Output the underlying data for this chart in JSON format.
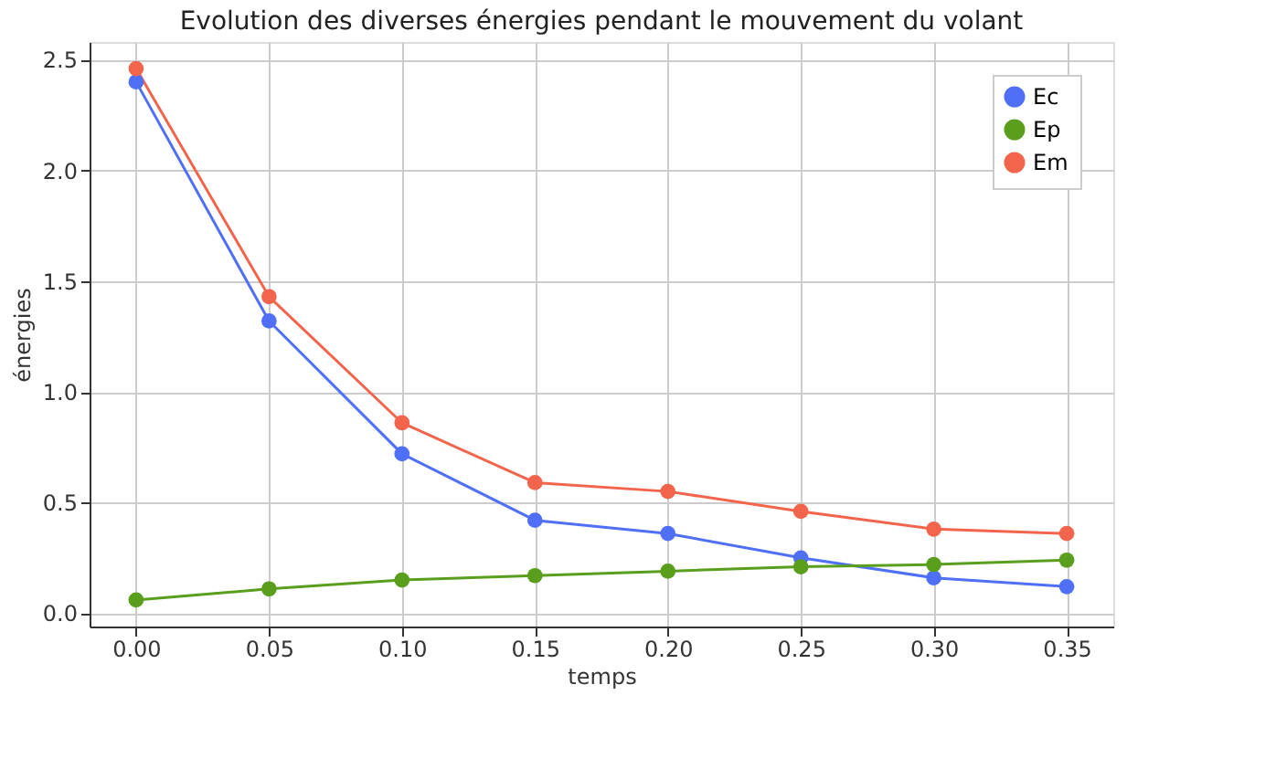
{
  "chart_data": {
    "type": "line",
    "title": "Evolution des diverses énergies pendant le mouvement du volant",
    "xlabel": "temps",
    "ylabel": "énergies",
    "x": [
      0.0,
      0.05,
      0.1,
      0.15,
      0.2,
      0.25,
      0.3,
      0.35
    ],
    "series": [
      {
        "name": "Ec",
        "color": "#4f6ff7",
        "values": [
          2.4,
          1.32,
          0.72,
          0.42,
          0.36,
          0.25,
          0.16,
          0.12
        ]
      },
      {
        "name": "Ep",
        "color": "#5a9e1e",
        "values": [
          0.06,
          0.11,
          0.15,
          0.17,
          0.19,
          0.21,
          0.22,
          0.24
        ]
      },
      {
        "name": "Em",
        "color": "#f2654c",
        "values": [
          2.46,
          1.43,
          0.86,
          0.59,
          0.55,
          0.46,
          0.38,
          0.36
        ]
      }
    ],
    "xlim": [
      -0.0175,
      0.3675
    ],
    "xticks": [
      {
        "value": 0.0,
        "label": "0.00"
      },
      {
        "value": 0.05,
        "label": "0.05"
      },
      {
        "value": 0.1,
        "label": "0.10"
      },
      {
        "value": 0.15,
        "label": "0.15"
      },
      {
        "value": 0.2,
        "label": "0.20"
      },
      {
        "value": 0.25,
        "label": "0.25"
      },
      {
        "value": 0.3,
        "label": "0.30"
      },
      {
        "value": 0.35,
        "label": "0.35"
      }
    ],
    "ylim": [
      -0.06,
      2.58
    ],
    "yticks": [
      {
        "value": 0.0,
        "label": "0.0"
      },
      {
        "value": 0.5,
        "label": "0.5"
      },
      {
        "value": 1.0,
        "label": "1.0"
      },
      {
        "value": 1.5,
        "label": "1.5"
      },
      {
        "value": 2.0,
        "label": "2.0"
      },
      {
        "value": 2.5,
        "label": "2.5"
      }
    ],
    "grid": true,
    "legend": "top right",
    "marker": "circle",
    "line_style": "solid"
  }
}
